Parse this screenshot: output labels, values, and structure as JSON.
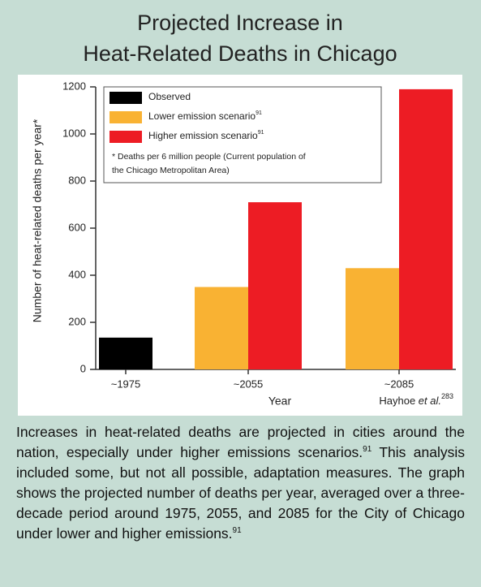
{
  "chart_data": {
    "type": "bar",
    "title": [
      "Projected Increase in",
      "Heat-Related Deaths in Chicago"
    ],
    "ylabel": "Number of heat-related deaths per year*",
    "xlabel": "Year",
    "categories": [
      "~1975",
      "~2055",
      "~2085"
    ],
    "series": [
      {
        "name": "Observed",
        "color": "#000000",
        "values": [
          135,
          null,
          null
        ]
      },
      {
        "name": "Lower emission scenario",
        "ref": "91",
        "color": "#f9b233",
        "values": [
          null,
          350,
          430
        ]
      },
      {
        "name": "Higher emission scenario",
        "ref": "91",
        "color": "#ed1c24",
        "values": [
          null,
          710,
          1190
        ]
      }
    ],
    "legend_note": [
      "* Deaths per 6 million people (Current population of",
      "the Chicago Metropolitan Area)"
    ],
    "ylim": [
      0,
      1200
    ],
    "yticks": [
      0,
      200,
      400,
      600,
      800,
      1000,
      1200
    ],
    "source": {
      "author": "Hayhoe ",
      "etal": "et al.",
      "ref": "283"
    }
  },
  "caption": [
    "Increases in heat-related deaths are projected in cities around the nation, especially under higher emissions scenarios.",
    "91",
    " This analysis included some, but not all possible, adaptation measures. The graph shows the projected number of deaths per year, averaged over a three-decade period around 1975, 2055, and 2085 for the City of Chicago under lower and higher emissions.",
    "91"
  ]
}
